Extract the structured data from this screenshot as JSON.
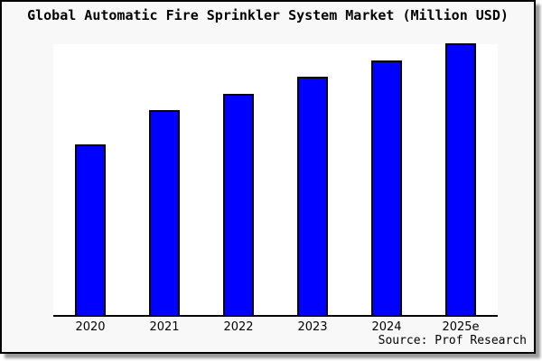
{
  "title": "Global Automatic Fire Sprinkler System Market (Million USD)",
  "source": "Source: Prof Research",
  "colors": {
    "bar_fill": "#0000ff",
    "bar_border": "#000000",
    "background": "#f8f8f8",
    "plot_background": "#ffffff",
    "axis": "#000000",
    "text": "#000000",
    "shadow": "#999999"
  },
  "chart_data": {
    "type": "bar",
    "title": "Global Automatic Fire Sprinkler System Market (Million USD)",
    "categories": [
      "2020",
      "2021",
      "2022",
      "2023",
      "2024",
      "2025e"
    ],
    "values": [
      62.6,
      75.2,
      81.1,
      87.4,
      93.4,
      99.7
    ],
    "value_scale": "relative bar height, percent of plot height (y-axis has no tick labels in source)",
    "xlabel": "",
    "ylabel": "",
    "ylim": [
      0,
      100
    ],
    "grid": false,
    "legend": false,
    "source_note": "Source: Prof Research"
  }
}
